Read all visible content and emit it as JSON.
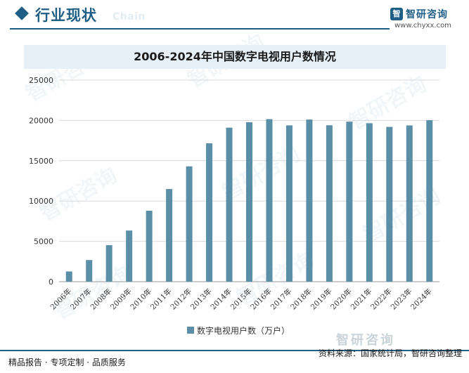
{
  "header": {
    "title": "行业现状",
    "ghost_text": "Chain",
    "brand_logo_glyph": "智",
    "brand_name": "智研咨询",
    "brand_url": "www.chyxx.com",
    "accent_color": "#1f5f86"
  },
  "chart_data": {
    "type": "bar",
    "title": "2006-2024年中国数字电视用户数情况",
    "categories": [
      "2006年",
      "2007年",
      "2008年",
      "2009年",
      "2010年",
      "2011年",
      "2012年",
      "2013年",
      "2014年",
      "2015年",
      "2016年",
      "2017年",
      "2018年",
      "2019年",
      "2020年",
      "2021年",
      "2022年",
      "2023年",
      "2024年"
    ],
    "series": [
      {
        "name": "数字电视用户数（万户）",
        "color": "#5b8fa8",
        "values": [
          1266,
          2686,
          4528,
          6343,
          8798,
          11489,
          14303,
          17160,
          19100,
          19776,
          20157,
          19383,
          20107,
          19400,
          19850,
          19650,
          19200,
          19380,
          20030
        ]
      }
    ],
    "ylim": [
      0,
      25000
    ],
    "yticks": [
      0,
      5000,
      10000,
      15000,
      20000,
      25000
    ],
    "grid": true,
    "legend_position": "bottom"
  },
  "footer": {
    "left_text": "精品报告 · 专项定制 · 品质服务",
    "right_text": "资料来源：国家统计局，智研咨询整理",
    "brand_text": "智研咨询"
  }
}
